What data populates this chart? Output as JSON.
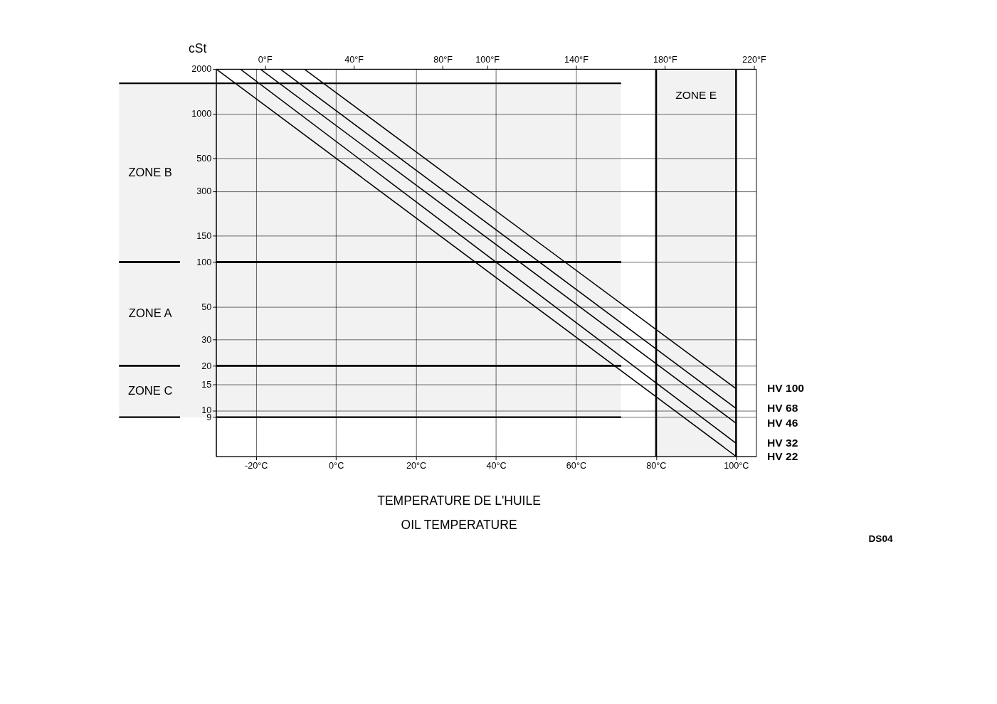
{
  "chart_data": {
    "type": "line",
    "ylabel": "cSt",
    "log": "y",
    "grid": true,
    "marker": "none",
    "xlim": [
      -30,
      105
    ],
    "ylim": [
      4.9,
      2000
    ],
    "xticks": [
      {
        "value": -20,
        "label": "-20°C"
      },
      {
        "value": 0,
        "label": "0°C"
      },
      {
        "value": 20,
        "label": "20°C"
      },
      {
        "value": 40,
        "label": "40°C"
      },
      {
        "value": 60,
        "label": "60°C"
      },
      {
        "value": 80,
        "label": "80°C"
      },
      {
        "value": 100,
        "label": "100°C"
      }
    ],
    "x2lim": [
      -22,
      221
    ],
    "x2ticks": [
      {
        "value": 0,
        "label": "0°F"
      },
      {
        "value": 40,
        "label": "40°F"
      },
      {
        "value": 80,
        "label": "80°F"
      },
      {
        "value": 100,
        "label": "100°F"
      },
      {
        "value": 140,
        "label": "140°F"
      },
      {
        "value": 180,
        "label": "180°F"
      },
      {
        "value": 220,
        "label": "220°F"
      }
    ],
    "yticks": [
      9,
      10,
      15,
      20,
      30,
      50,
      100,
      150,
      300,
      500,
      1000,
      2000
    ],
    "series": [
      {
        "name": "HV 22",
        "color": "#000000",
        "x": [
          -30,
          100
        ],
        "values": [
          2000,
          4.9
        ]
      },
      {
        "name": "HV 32",
        "color": "#000000",
        "x": [
          -24,
          100
        ],
        "values": [
          2000,
          6.0
        ]
      },
      {
        "name": "HV 46",
        "color": "#000000",
        "x": [
          -19,
          100
        ],
        "values": [
          2000,
          8.2
        ]
      },
      {
        "name": "HV 68",
        "color": "#000000",
        "x": [
          -14,
          100
        ],
        "values": [
          2000,
          10.3
        ]
      },
      {
        "name": "HV 100",
        "color": "#000000",
        "x": [
          -8,
          100
        ],
        "values": [
          2000,
          14
        ]
      }
    ],
    "bands": [
      {
        "axis": "y",
        "from": 100,
        "to": 1600,
        "label": "ZONE B"
      },
      {
        "axis": "y",
        "from": 20,
        "to": 100,
        "label": "ZONE A"
      },
      {
        "axis": "y",
        "from": 9,
        "to": 20,
        "label": "ZONE C"
      },
      {
        "axis": "x",
        "from": 80,
        "to": 100,
        "label": "ZONE E"
      }
    ],
    "annotations": [
      "TEMPERATURE DE L'HUILE",
      "OIL TEMPERATURE",
      "DS04"
    ]
  }
}
